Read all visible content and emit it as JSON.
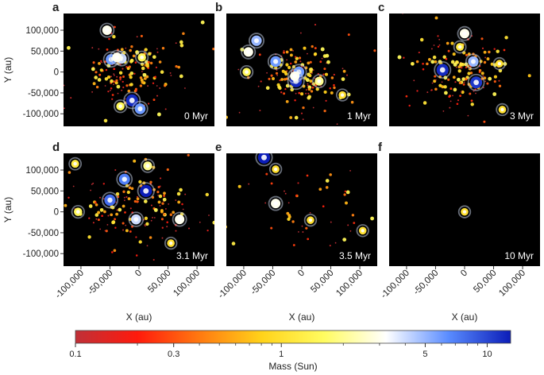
{
  "chart_data": {
    "type": "scatter",
    "xlabel": "X (au)",
    "ylabel": "Y (au)",
    "xlim": [
      -130000,
      130000
    ],
    "ylim": [
      -130000,
      140000
    ],
    "xticks": [
      -100000,
      -50000,
      0,
      50000,
      100000
    ],
    "xtick_labels": [
      "-100,000",
      "-50,000",
      "0",
      "50,000",
      "100,000"
    ],
    "yticks": [
      -100000,
      -50000,
      0,
      50000,
      100000
    ],
    "ytick_labels": [
      "-100,000",
      "-50,000",
      "0",
      "50,000",
      "100,000"
    ],
    "grid": false,
    "background": "#000000",
    "colorbar": {
      "label": "Mass (Sun)",
      "scale": "log",
      "range": [
        0.1,
        13
      ],
      "ticks": [
        0.1,
        0.3,
        1,
        5,
        10
      ],
      "tick_labels": [
        "0.1",
        "0.3",
        "1",
        "5",
        "10"
      ],
      "colors": [
        "#c03038",
        "#ff1a0c",
        "#ff7a10",
        "#ffd31a",
        "#fffc60",
        "#ffffff",
        "#5a8cff",
        "#0b1db8"
      ]
    },
    "panels": [
      {
        "letter": "a",
        "time": "0 Myr",
        "big_stars": [
          {
            "x": -55000,
            "y": 100000,
            "m": 3
          },
          {
            "x": -48000,
            "y": 30000,
            "m": 6
          },
          {
            "x": -30000,
            "y": 32000,
            "m": 4
          },
          {
            "x": -38000,
            "y": 35000,
            "m": 3
          },
          {
            "x": -12000,
            "y": -68000,
            "m": 12
          },
          {
            "x": 2000,
            "y": -88000,
            "m": 6
          },
          {
            "x": -32000,
            "y": -82000,
            "m": 1.5
          },
          {
            "x": 5000,
            "y": 35000,
            "m": 1.5
          }
        ],
        "cluster": {
          "n": 180,
          "sx": 38000,
          "sy": 36000,
          "cx": -15000,
          "cy": 0,
          "seed": 11
        }
      },
      {
        "letter": "b",
        "time": "1 Myr",
        "big_stars": [
          {
            "x": -92000,
            "y": 48000,
            "m": 3
          },
          {
            "x": -78000,
            "y": 75000,
            "m": 5
          },
          {
            "x": -95000,
            "y": 0,
            "m": 1.5
          },
          {
            "x": -45000,
            "y": 25000,
            "m": 6
          },
          {
            "x": -10000,
            "y": -22000,
            "m": 12
          },
          {
            "x": -5000,
            "y": 0,
            "m": 6
          },
          {
            "x": 30000,
            "y": -22000,
            "m": 2
          },
          {
            "x": -12000,
            "y": -10000,
            "m": 3
          },
          {
            "x": 70000,
            "y": -55000,
            "m": 1
          }
        ],
        "cluster": {
          "n": 170,
          "sx": 34000,
          "sy": 32000,
          "cx": 0,
          "cy": -5000,
          "seed": 23
        }
      },
      {
        "letter": "c",
        "time": "3 Myr",
        "big_stars": [
          {
            "x": 0,
            "y": 92000,
            "m": 3
          },
          {
            "x": -38000,
            "y": 5000,
            "m": 12
          },
          {
            "x": 20000,
            "y": -25000,
            "m": 11
          },
          {
            "x": 15000,
            "y": 25000,
            "m": 5
          },
          {
            "x": -8000,
            "y": 60000,
            "m": 1.2
          },
          {
            "x": 60000,
            "y": 20000,
            "m": 1
          },
          {
            "x": 65000,
            "y": -90000,
            "m": 1
          }
        ],
        "cluster": {
          "n": 165,
          "sx": 36000,
          "sy": 34000,
          "cx": -5000,
          "cy": 5000,
          "seed": 37
        }
      },
      {
        "letter": "d",
        "time": "3.1 Myr",
        "big_stars": [
          {
            "x": 12000,
            "y": 50000,
            "m": 13
          },
          {
            "x": -25000,
            "y": 78000,
            "m": 7
          },
          {
            "x": -50000,
            "y": 28000,
            "m": 8
          },
          {
            "x": 15000,
            "y": 110000,
            "m": 2
          },
          {
            "x": -5000,
            "y": -18000,
            "m": 4
          },
          {
            "x": 70000,
            "y": -18000,
            "m": 3
          },
          {
            "x": -110000,
            "y": 115000,
            "m": 1.2
          },
          {
            "x": -105000,
            "y": 0,
            "m": 1.5
          },
          {
            "x": 55000,
            "y": -75000,
            "m": 1
          }
        ],
        "cluster": {
          "n": 170,
          "sx": 52000,
          "sy": 42000,
          "cx": -10000,
          "cy": 15000,
          "seed": 53
        }
      },
      {
        "letter": "e",
        "time": "3.5 Myr",
        "big_stars": [
          {
            "x": -65000,
            "y": 130000,
            "m": 13
          },
          {
            "x": -45000,
            "y": 20000,
            "m": 3
          },
          {
            "x": -45000,
            "y": 102000,
            "m": 1
          },
          {
            "x": 15000,
            "y": -20000,
            "m": 1
          },
          {
            "x": 105000,
            "y": -45000,
            "m": 1
          }
        ],
        "cluster": {
          "n": 55,
          "sx": 65000,
          "sy": 60000,
          "cx": 0,
          "cy": 10000,
          "seed": 71
        }
      },
      {
        "letter": "f",
        "time": "10 Myr",
        "big_stars": [
          {
            "x": 0,
            "y": 0,
            "m": 1
          }
        ],
        "cluster": {
          "n": 0,
          "sx": 0,
          "sy": 0,
          "cx": 0,
          "cy": 0,
          "seed": 1
        }
      }
    ]
  }
}
